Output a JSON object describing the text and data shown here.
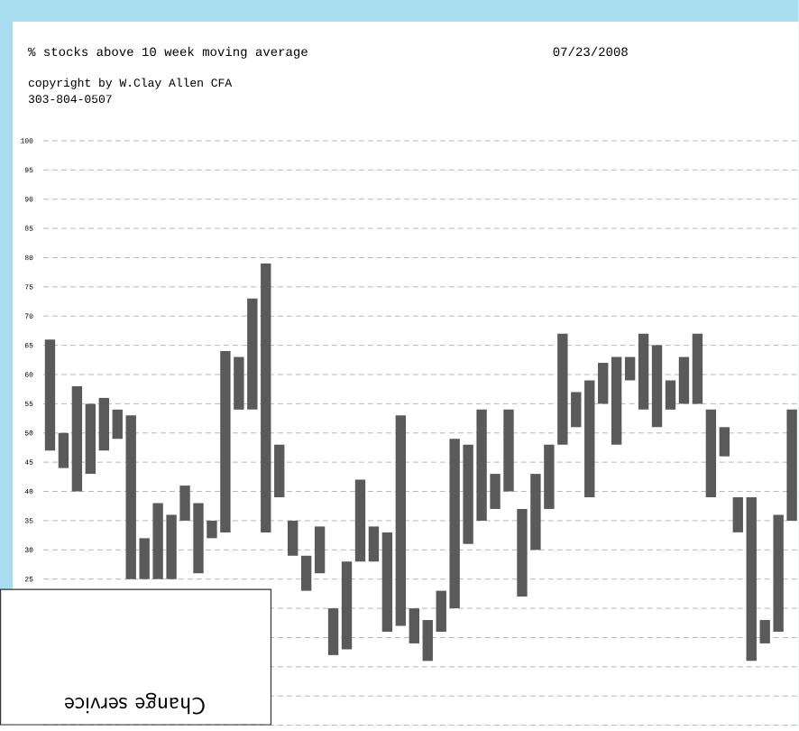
{
  "chart_data": {
    "type": "bar",
    "title": "% stocks above 10 week moving average",
    "subtitle": "07/23/2008",
    "annotations": [
      "copyright by W.Clay Allen CFA",
      "303-804-0507",
      "Change service"
    ],
    "categories": [
      null,
      null,
      null,
      null,
      null,
      null,
      null,
      null,
      null,
      null,
      null,
      null,
      null,
      null,
      null,
      null,
      null,
      null,
      null,
      null,
      null,
      null,
      null,
      null,
      null,
      null,
      null,
      null,
      null,
      null,
      null,
      null,
      null,
      null,
      null,
      null,
      null,
      null,
      null,
      null,
      null,
      null,
      null,
      null,
      null,
      null,
      null,
      null,
      null,
      null,
      null,
      null,
      null,
      null,
      null,
      null
    ],
    "base": [
      47,
      44,
      40,
      43,
      47,
      49,
      25,
      25,
      25,
      25,
      35,
      26,
      32,
      33,
      54,
      54,
      33,
      39,
      29,
      23,
      26,
      12,
      13,
      28,
      28,
      16,
      17,
      14,
      11,
      16,
      20,
      31,
      35,
      37,
      40,
      22,
      30,
      37,
      48,
      51,
      39,
      55,
      48,
      59,
      54,
      51,
      54,
      55,
      55,
      39,
      46,
      33,
      11,
      14,
      16,
      35
    ],
    "values": [
      19,
      6,
      18,
      12,
      9,
      5,
      28,
      7,
      13,
      11,
      6,
      12,
      3,
      31,
      9,
      19,
      46,
      9,
      6,
      6,
      8,
      8,
      15,
      14,
      6,
      17,
      36,
      6,
      7,
      7,
      29,
      17,
      19,
      6,
      14,
      15,
      13,
      11,
      19,
      6,
      20,
      7,
      15,
      4,
      13,
      14,
      5,
      8,
      12,
      15,
      5,
      6,
      28,
      4,
      20,
      19
    ],
    "color": "#5a5a5a",
    "ylim": [
      0,
      100
    ],
    "yticks": [
      {
        "value": 0,
        "label": null
      },
      {
        "value": 5,
        "label": null
      },
      {
        "value": 10,
        "label": null
      },
      {
        "value": 15,
        "label": null
      },
      {
        "value": 20,
        "label": null
      },
      25,
      30,
      35,
      40,
      45,
      50,
      55,
      60,
      65,
      70,
      75,
      80,
      85,
      90,
      95,
      100
    ],
    "grid": "y",
    "tick_labels": "y"
  }
}
